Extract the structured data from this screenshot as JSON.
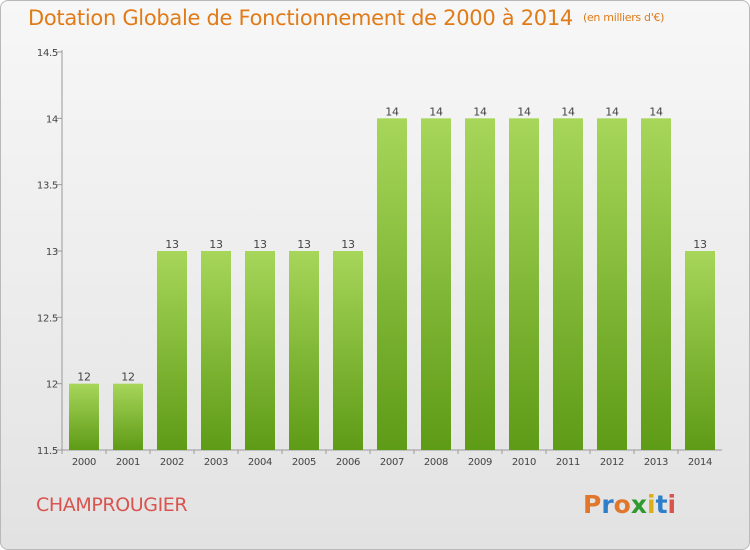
{
  "title": "Dotation Globale de Fonctionnement de 2000 à 2014",
  "unit_note": "(en milliers d'€)",
  "commune": "CHAMPROUGIER",
  "logo": "Proxiti",
  "colors": {
    "title": "#e07b17",
    "commune": "#d9534f",
    "bar_top": "#a7d65a",
    "bar_bottom": "#5e9b16",
    "logo_letters": [
      "#e0772a",
      "#2f7fc8",
      "#e0772a",
      "#2f9a2f",
      "#d9b01a",
      "#2f7fc8",
      "#d9534f"
    ]
  },
  "chart_data": {
    "type": "bar",
    "title": "Dotation Globale de Fonctionnement de 2000 à 2014",
    "subtitle": "(en milliers d'€)",
    "xlabel": "",
    "ylabel": "",
    "ylim": [
      11.5,
      14.5
    ],
    "yticks": [
      11.5,
      12,
      12.5,
      13,
      13.5,
      14,
      14.5
    ],
    "ytick_labels": [
      "11.5",
      "12",
      "12.5",
      "13",
      "13.5",
      "14",
      "14.5"
    ],
    "categories": [
      "2000",
      "2001",
      "2002",
      "2003",
      "2004",
      "2005",
      "2006",
      "2007",
      "2008",
      "2009",
      "2010",
      "2011",
      "2012",
      "2013",
      "2014"
    ],
    "values": [
      12,
      12,
      13,
      13,
      13,
      13,
      13,
      14,
      14,
      14,
      14,
      14,
      14,
      14,
      13
    ],
    "value_labels": [
      "12",
      "12",
      "13",
      "13",
      "13",
      "13",
      "13",
      "14",
      "14",
      "14",
      "14",
      "14",
      "14",
      "14",
      "13"
    ],
    "grid": false,
    "legend": "none"
  }
}
